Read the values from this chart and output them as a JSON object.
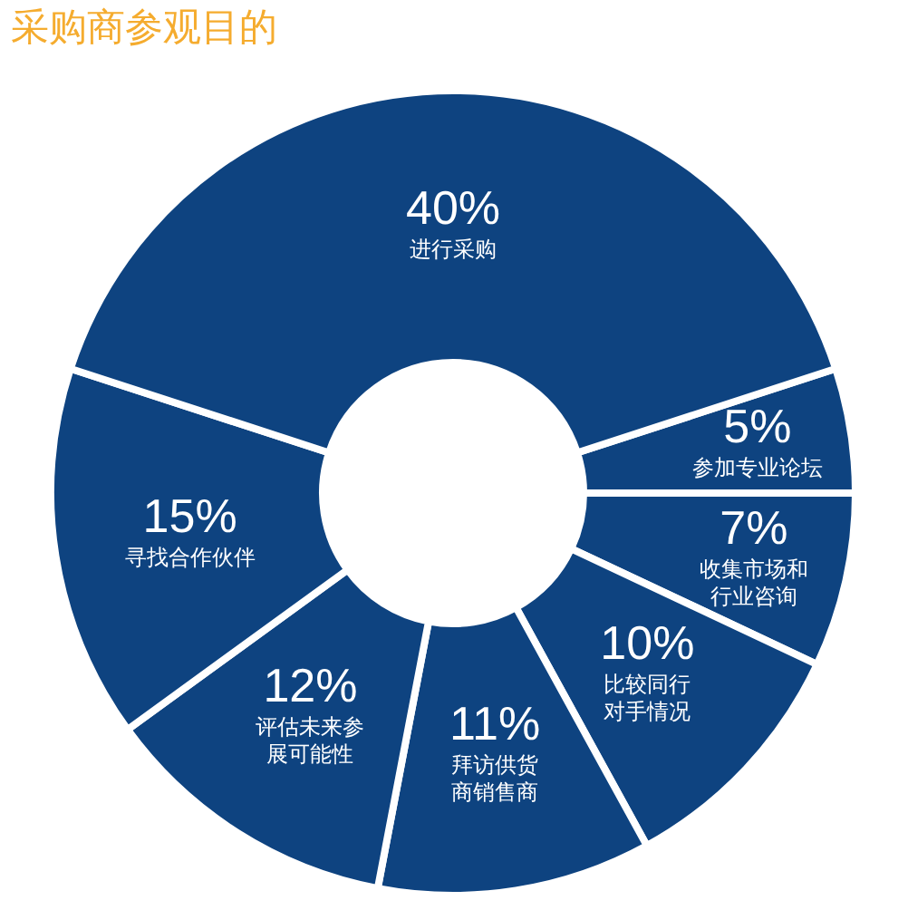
{
  "chart_data": {
    "type": "donut",
    "title": "采购商参观目的",
    "categories": [
      "参加专业论坛",
      "收集市场和行业咨询",
      "比较同行对手情况",
      "拜访供货商销售商",
      "评估未来参展可能性",
      "寻找合作伙伴",
      "进行采购"
    ],
    "values": [
      5,
      7,
      10,
      11,
      12,
      15,
      40
    ],
    "value_labels": [
      "5%",
      "7%",
      "10%",
      "11%",
      "12%",
      "15%",
      "40%"
    ],
    "colors": [
      "#0e4380",
      "#0e4380",
      "#0e4380",
      "#0e4380",
      "#0e4380",
      "#0e4380",
      "#0e4380"
    ]
  }
}
